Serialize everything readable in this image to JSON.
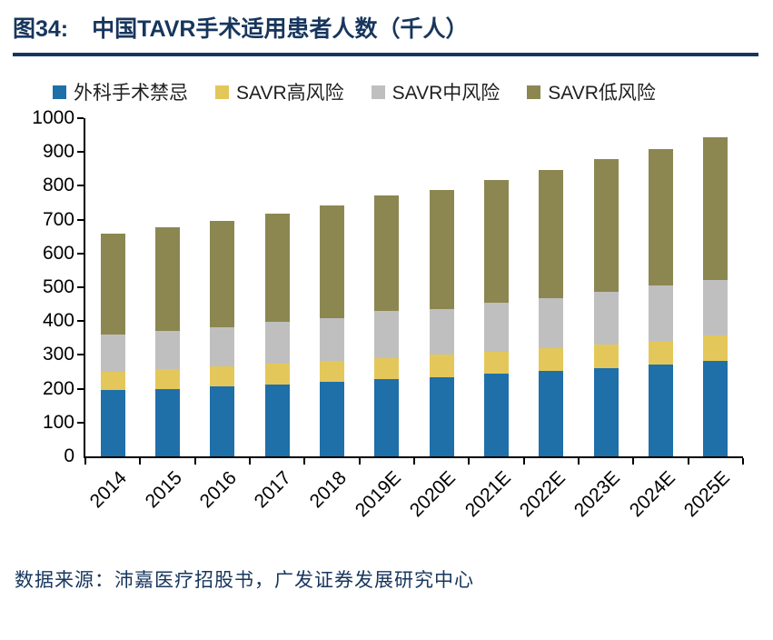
{
  "header": {
    "figure_label": "图34:",
    "title": "中国TAVR手术适用患者人数（千人）"
  },
  "footer": {
    "source": "数据来源：沛嘉医疗招股书，广发证券发展研究中心"
  },
  "colors": {
    "title_navy": "#17365D",
    "axis_black": "#000000",
    "series_blue": "#1F6FA9",
    "series_yellow": "#E4C75A",
    "series_gray": "#BFBFBF",
    "series_olive": "#8C8751"
  },
  "chart_data": {
    "type": "bar",
    "stacked": true,
    "title": "中国TAVR手术适用患者人数（千人）",
    "xlabel": "",
    "ylabel": "",
    "ylim": [
      0,
      1000
    ],
    "ytick_step": 100,
    "grid": false,
    "legend_position": "top",
    "categories": [
      "2014",
      "2015",
      "2016",
      "2017",
      "2018",
      "2019E",
      "2020E",
      "2021E",
      "2022E",
      "2023E",
      "2024E",
      "2025E"
    ],
    "series": [
      {
        "name": "外科手术禁忌",
        "color": "#1F6FA9",
        "values": [
          195,
          200,
          207,
          213,
          220,
          228,
          235,
          245,
          253,
          262,
          272,
          282
        ]
      },
      {
        "name": "SAVR高风险",
        "color": "#E4C75A",
        "values": [
          55,
          57,
          58,
          60,
          62,
          62,
          65,
          63,
          67,
          68,
          68,
          75
        ]
      },
      {
        "name": "SAVR中风险",
        "color": "#BFBFBF",
        "values": [
          110,
          113,
          118,
          124,
          128,
          140,
          135,
          147,
          148,
          157,
          165,
          165
        ]
      },
      {
        "name": "SAVR低风险",
        "color": "#8C8751",
        "values": [
          298,
          308,
          314,
          321,
          332,
          342,
          353,
          363,
          380,
          391,
          405,
          421
        ]
      }
    ],
    "totals": [
      658,
      678,
      697,
      718,
      742,
      772,
      788,
      818,
      848,
      878,
      910,
      943
    ]
  }
}
